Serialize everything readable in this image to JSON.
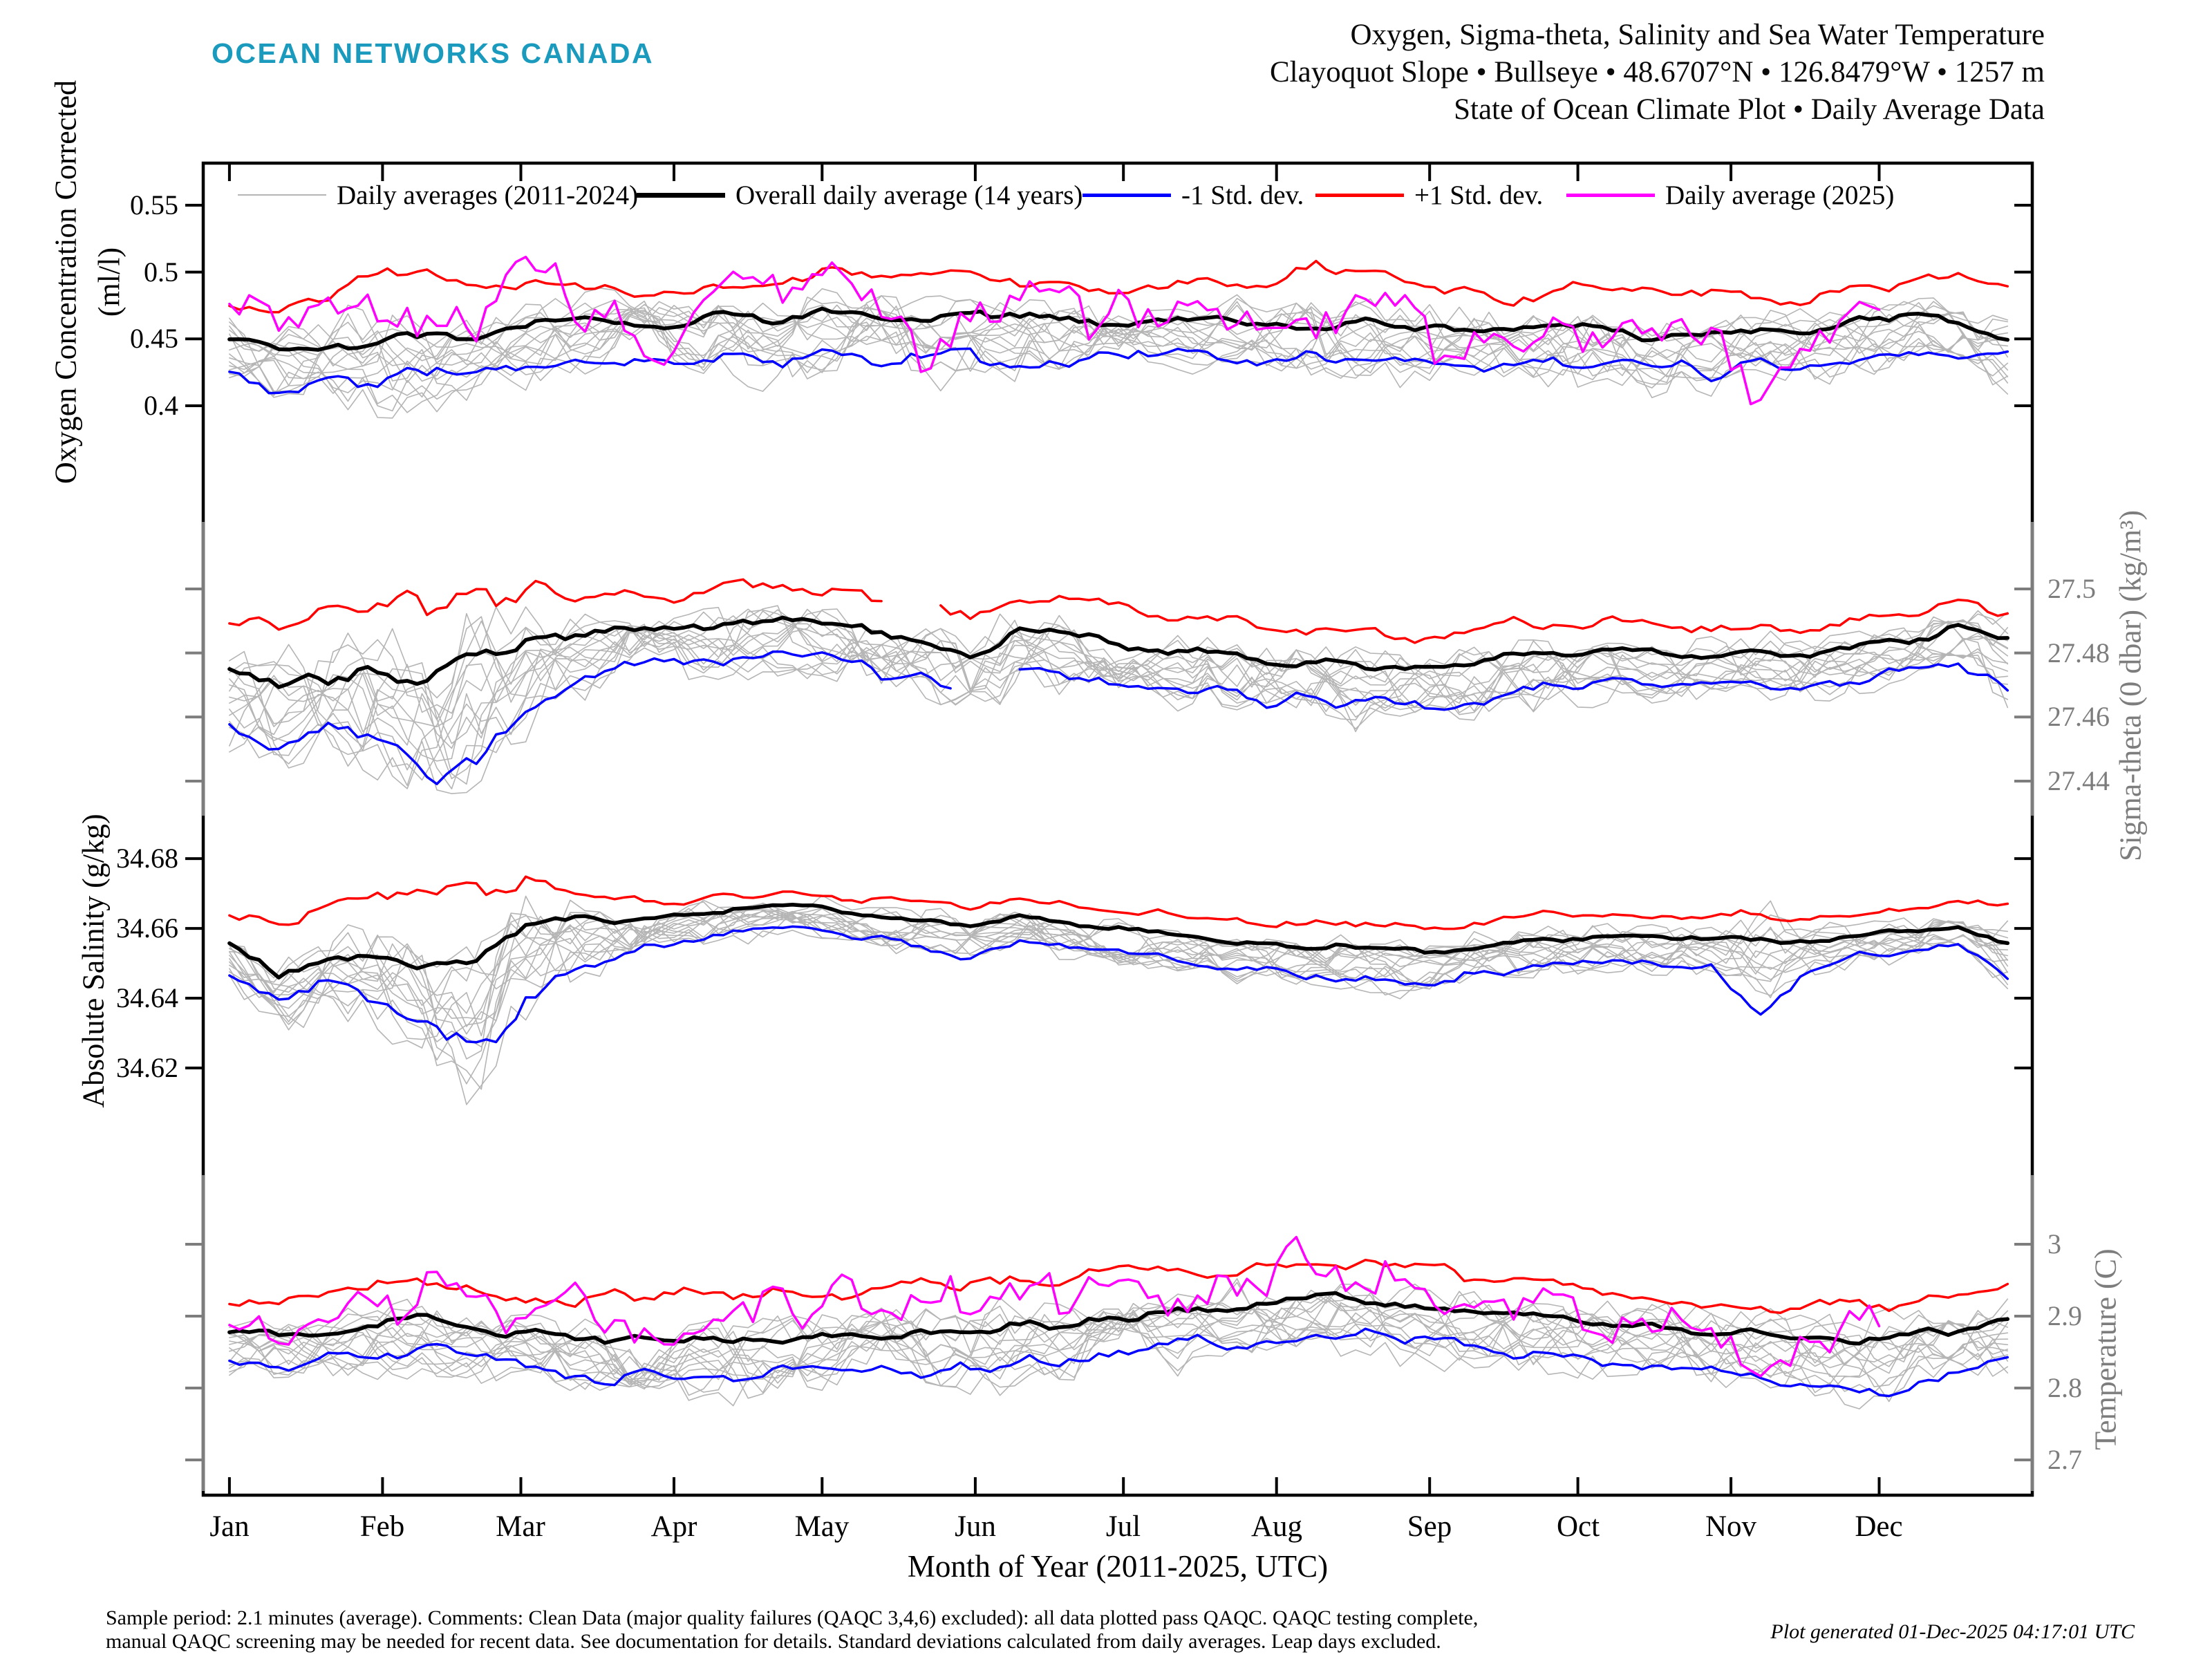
{
  "header": {
    "logo": "OCEAN NETWORKS CANADA",
    "logo_color": "#1a9abd",
    "title_lines": [
      "Oxygen, Sigma-theta, Salinity and Sea Water Temperature",
      "Clayoquot Slope • Bullseye • 48.6707°N • 126.8479°W • 1257 m",
      "State of Ocean Climate Plot • Daily Average Data"
    ]
  },
  "legend": [
    {
      "label": "Daily averages (2011-2024)",
      "color": "#b5b5b5",
      "lw": 2
    },
    {
      "label": "Overall daily average (14 years)",
      "color": "#000000",
      "lw": 7
    },
    {
      "label": "-1 Std. dev.",
      "color": "#0000ff",
      "lw": 5
    },
    {
      "label": "+1 Std. dev.",
      "color": "#ff0000",
      "lw": 5
    },
    {
      "label": "Daily average (2025)",
      "color": "#ff00ff",
      "lw": 5
    }
  ],
  "xaxis": {
    "label": "Month of Year (2011-2025, UTC)",
    "months": [
      "Jan",
      "Feb",
      "Mar",
      "Apr",
      "May",
      "Jun",
      "Jul",
      "Aug",
      "Sep",
      "Oct",
      "Nov",
      "Dec"
    ],
    "month_start_days": [
      0,
      31,
      59,
      90,
      120,
      151,
      181,
      212,
      243,
      273,
      304,
      334
    ]
  },
  "footer": {
    "line1": "Sample period: 2.1 minutes (average). Comments: Clean Data (major quality failures (QAQC 3,4,6) excluded): all data plotted pass QAQC. QAQC testing complete,",
    "line2": "manual QAQC screening may be needed for recent data. See documentation for details. Standard deviations calculated from daily averages. Leap days excluded.",
    "generated": "Plot generated 01-Dec-2025 04:17:01 UTC"
  },
  "chart_data": {
    "type": "line",
    "x_unit": "day_of_year",
    "day_step": 10,
    "xlim_days": [
      -5.3,
      365
    ],
    "gray_years": {
      "count": 14,
      "range": "2011-2024"
    },
    "colors": {
      "gray": "#b5b5b5",
      "mean": "#000000",
      "minus": "#0000ff",
      "plus": "#ff0000",
      "y2025": "#ff00ff"
    },
    "panels": [
      {
        "name": "oxygen",
        "ylabel_lines": [
          "Oxygen Concentration Corrected",
          "(ml/l)"
        ],
        "axis_side": "left",
        "axis_color": "#000000",
        "ylim": [
          0.3416,
          0.5815
        ],
        "ytick_values": [
          0.55,
          0.5,
          0.45,
          0.4
        ],
        "ytick_labels": [
          "0.55",
          "0.5",
          "0.45",
          "0.4"
        ],
        "series": {
          "overall_mean": [
            0.452,
            0.444,
            0.447,
            0.452,
            0.452,
            0.453,
            0.458,
            0.47,
            0.463,
            0.458,
            0.468,
            0.46,
            0.47,
            0.468,
            0.464,
            0.47,
            0.466,
            0.464,
            0.46,
            0.465,
            0.468,
            0.458,
            0.462,
            0.465,
            0.46,
            0.456,
            0.455,
            0.458,
            0.455,
            0.452,
            0.455,
            0.46,
            0.457,
            0.462,
            0.468,
            0.462,
            0.45
          ],
          "plus_1std": [
            0.478,
            0.47,
            0.478,
            0.505,
            0.495,
            0.486,
            0.488,
            0.488,
            0.483,
            0.488,
            0.495,
            0.49,
            0.505,
            0.5,
            0.495,
            0.498,
            0.492,
            0.488,
            0.488,
            0.492,
            0.494,
            0.484,
            0.505,
            0.498,
            0.49,
            0.488,
            0.482,
            0.488,
            0.483,
            0.483,
            0.485,
            0.482,
            0.478,
            0.488,
            0.492,
            0.502,
            0.49
          ],
          "minus_1std": [
            0.428,
            0.413,
            0.42,
            0.42,
            0.422,
            0.43,
            0.43,
            0.43,
            0.428,
            0.433,
            0.44,
            0.43,
            0.438,
            0.435,
            0.432,
            0.438,
            0.432,
            0.428,
            0.436,
            0.442,
            0.438,
            0.43,
            0.435,
            0.44,
            0.435,
            0.432,
            0.428,
            0.433,
            0.43,
            0.428,
            0.425,
            0.432,
            0.43,
            0.435,
            0.44,
            0.44,
            0.437
          ],
          "daily_2025": [
            0.48,
            0.473,
            0.477,
            0.47,
            0.476,
            0.452,
            0.505,
            0.47,
            0.463,
            0.445,
            0.495,
            0.478,
            0.51,
            0.47,
            0.445,
            0.468,
            0.475,
            0.47,
            0.468,
            0.472,
            0.47,
            0.458,
            0.468,
            0.475,
            0.462,
            0.432,
            0.45,
            0.455,
            0.462,
            0.445,
            0.448,
            0.408,
            0.452,
            0.48,
            null,
            null,
            null
          ]
        },
        "gaps": {}
      },
      {
        "name": "sigma-theta",
        "ylabel_lines": [
          "Sigma-theta (0 dbar) (kg/m³)"
        ],
        "axis_side": "right",
        "axis_color": "#7d7d7d",
        "ylim": [
          27.4292,
          27.5328
        ],
        "ytick_values": [
          27.5,
          27.48,
          27.46,
          27.44
        ],
        "ytick_labels": [
          "27.5",
          "27.48",
          "27.46",
          "27.44"
        ],
        "series": {
          "overall_mean": [
            27.475,
            27.469,
            27.473,
            27.474,
            27.47,
            27.478,
            27.483,
            27.485,
            27.487,
            27.488,
            27.49,
            27.49,
            27.489,
            27.487,
            27.485,
            27.479,
            27.487,
            27.485,
            27.483,
            27.481,
            27.479,
            27.477,
            27.477,
            27.476,
            27.475,
            27.476,
            27.479,
            27.48,
            27.481,
            27.48,
            27.48,
            27.481,
            27.479,
            27.482,
            27.484,
            27.488,
            27.485
          ],
          "plus_1std": [
            27.492,
            27.488,
            27.492,
            27.496,
            27.493,
            27.499,
            27.5,
            27.498,
            27.5,
            27.498,
            27.503,
            27.5,
            27.5,
            27.498,
            27.497,
            27.493,
            27.497,
            27.495,
            27.494,
            27.492,
            27.49,
            27.488,
            27.489,
            27.487,
            27.486,
            27.487,
            27.489,
            27.49,
            27.49,
            27.489,
            27.489,
            27.49,
            27.488,
            27.491,
            27.493,
            27.498,
            27.494
          ],
          "minus_1std": [
            27.46,
            27.45,
            27.455,
            27.452,
            27.444,
            27.442,
            27.462,
            27.472,
            27.475,
            27.478,
            27.478,
            27.48,
            27.478,
            27.475,
            27.472,
            27.468,
            27.475,
            27.472,
            27.472,
            27.47,
            27.468,
            27.465,
            27.465,
            27.464,
            27.464,
            27.465,
            27.468,
            27.47,
            27.471,
            27.47,
            27.47,
            27.471,
            27.469,
            27.472,
            27.474,
            27.477,
            27.468
          ],
          "daily_2025": null
        },
        "gaps": {
          "plus_1std": [
            [
              133,
              143
            ]
          ],
          "minus_1std": [
            [
              147,
              158
            ]
          ]
        }
      },
      {
        "name": "salinity",
        "ylabel_lines": [
          "Absolute Salinity (g/kg)"
        ],
        "axis_side": "left",
        "axis_color": "#000000",
        "ylim": [
          34.5893,
          34.6923
        ],
        "ytick_values": [
          34.68,
          34.66,
          34.64,
          34.62
        ],
        "ytick_labels": [
          "34.68",
          "34.66",
          "34.64",
          "34.62"
        ],
        "series": {
          "overall_mean": [
            34.656,
            34.646,
            34.652,
            34.653,
            34.65,
            34.648,
            34.66,
            34.662,
            34.662,
            34.664,
            34.665,
            34.666,
            34.666,
            34.664,
            34.662,
            34.66,
            34.663,
            34.661,
            34.66,
            34.658,
            34.656,
            34.655,
            34.654,
            34.654,
            34.653,
            34.654,
            34.656,
            34.657,
            34.658,
            34.657,
            34.657,
            34.658,
            34.657,
            34.658,
            34.659,
            34.661,
            34.656
          ],
          "plus_1std": [
            34.664,
            34.662,
            34.666,
            34.668,
            34.668,
            34.67,
            34.672,
            34.67,
            34.67,
            34.668,
            34.67,
            34.67,
            34.67,
            34.668,
            34.668,
            34.665,
            34.668,
            34.666,
            34.665,
            34.664,
            34.663,
            34.662,
            34.663,
            34.662,
            34.661,
            34.662,
            34.663,
            34.664,
            34.664,
            34.663,
            34.663,
            34.664,
            34.663,
            34.664,
            34.665,
            34.668,
            34.665
          ],
          "minus_1std": [
            34.648,
            34.64,
            34.644,
            34.64,
            34.632,
            34.623,
            34.64,
            34.648,
            34.652,
            34.656,
            34.658,
            34.66,
            34.659,
            34.657,
            34.655,
            34.652,
            34.656,
            34.654,
            34.653,
            34.651,
            34.649,
            34.648,
            34.647,
            34.646,
            34.645,
            34.646,
            34.648,
            34.65,
            34.651,
            34.65,
            34.65,
            34.637,
            34.649,
            34.652,
            34.654,
            34.656,
            34.646
          ],
          "daily_2025": null
        },
        "gaps": {}
      },
      {
        "name": "temperature",
        "ylabel_lines": [
          "Temperature (C)"
        ],
        "axis_side": "right",
        "axis_color": "#7d7d7d",
        "ylim": [
          2.651,
          3.0962
        ],
        "ytick_values": [
          3,
          2.9,
          2.8,
          2.7
        ],
        "ytick_labels": [
          "3",
          "2.9",
          "2.8",
          "2.7"
        ],
        "series": {
          "overall_mean": [
            2.88,
            2.875,
            2.88,
            2.892,
            2.895,
            2.88,
            2.874,
            2.87,
            2.872,
            2.87,
            2.868,
            2.872,
            2.87,
            2.875,
            2.878,
            2.88,
            2.885,
            2.89,
            2.896,
            2.905,
            2.91,
            2.918,
            2.928,
            2.92,
            2.915,
            2.91,
            2.905,
            2.9,
            2.89,
            2.885,
            2.88,
            2.878,
            2.872,
            2.87,
            2.875,
            2.88,
            2.89
          ],
          "plus_1std": [
            2.92,
            2.915,
            2.925,
            2.948,
            2.952,
            2.935,
            2.93,
            2.928,
            2.93,
            2.925,
            2.925,
            2.93,
            2.93,
            2.935,
            2.94,
            2.945,
            2.95,
            2.955,
            2.96,
            2.965,
            2.965,
            2.97,
            2.975,
            2.97,
            2.965,
            2.958,
            2.95,
            2.945,
            2.935,
            2.925,
            2.92,
            2.915,
            2.912,
            2.912,
            2.918,
            2.925,
            2.935
          ],
          "minus_1std": [
            2.84,
            2.832,
            2.84,
            2.852,
            2.856,
            2.84,
            2.828,
            2.82,
            2.818,
            2.815,
            2.812,
            2.818,
            2.82,
            2.822,
            2.825,
            2.83,
            2.838,
            2.845,
            2.852,
            2.858,
            2.862,
            2.868,
            2.875,
            2.87,
            2.865,
            2.858,
            2.85,
            2.845,
            2.838,
            2.83,
            2.822,
            2.815,
            2.805,
            2.79,
            2.8,
            2.82,
            2.845
          ],
          "daily_2025": [
            2.885,
            2.89,
            2.895,
            2.912,
            2.94,
            2.92,
            2.905,
            2.91,
            2.905,
            2.9,
            2.905,
            2.915,
            2.91,
            2.92,
            2.915,
            2.92,
            2.925,
            2.93,
            2.928,
            2.935,
            2.94,
            2.96,
            2.995,
            2.945,
            2.93,
            2.925,
            2.91,
            2.895,
            2.9,
            2.89,
            2.88,
            2.845,
            2.875,
            2.885,
            null,
            null,
            null
          ]
        },
        "gaps": {}
      }
    ]
  }
}
